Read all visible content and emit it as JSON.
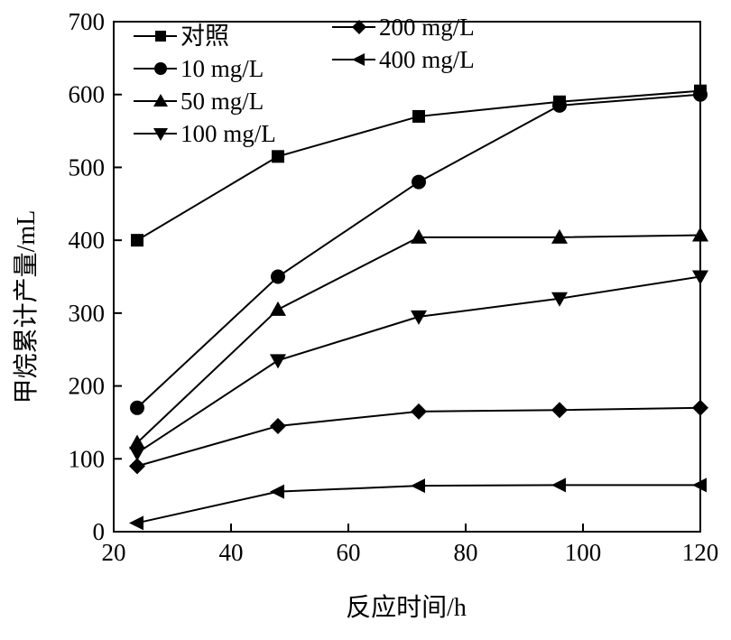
{
  "chart_data": {
    "type": "line",
    "title": "",
    "xlabel": "反应时间/h",
    "ylabel": "甲烷累计产量/mL",
    "xlim": [
      20,
      120
    ],
    "ylim": [
      0,
      700
    ],
    "xticks": [
      20,
      40,
      60,
      80,
      100,
      120
    ],
    "yticks": [
      0,
      100,
      200,
      300,
      400,
      500,
      600,
      700
    ],
    "grid": false,
    "legend_position": "top-left",
    "x": [
      24,
      48,
      72,
      96,
      120
    ],
    "series": [
      {
        "name": "对照",
        "marker": "square",
        "values": [
          400,
          515,
          570,
          590,
          605
        ]
      },
      {
        "name": "10 mg/L",
        "marker": "circle",
        "values": [
          170,
          350,
          480,
          585,
          600
        ]
      },
      {
        "name": "50 mg/L",
        "marker": "triangle-up",
        "values": [
          122,
          305,
          404,
          404,
          407
        ]
      },
      {
        "name": "100 mg/L",
        "marker": "triangle-down",
        "values": [
          108,
          235,
          295,
          320,
          350
        ]
      },
      {
        "name": "200 mg/L",
        "marker": "diamond",
        "values": [
          90,
          145,
          165,
          167,
          170
        ]
      },
      {
        "name": "400 mg/L",
        "marker": "triangle-left",
        "values": [
          12,
          55,
          63,
          64,
          64
        ]
      }
    ]
  }
}
